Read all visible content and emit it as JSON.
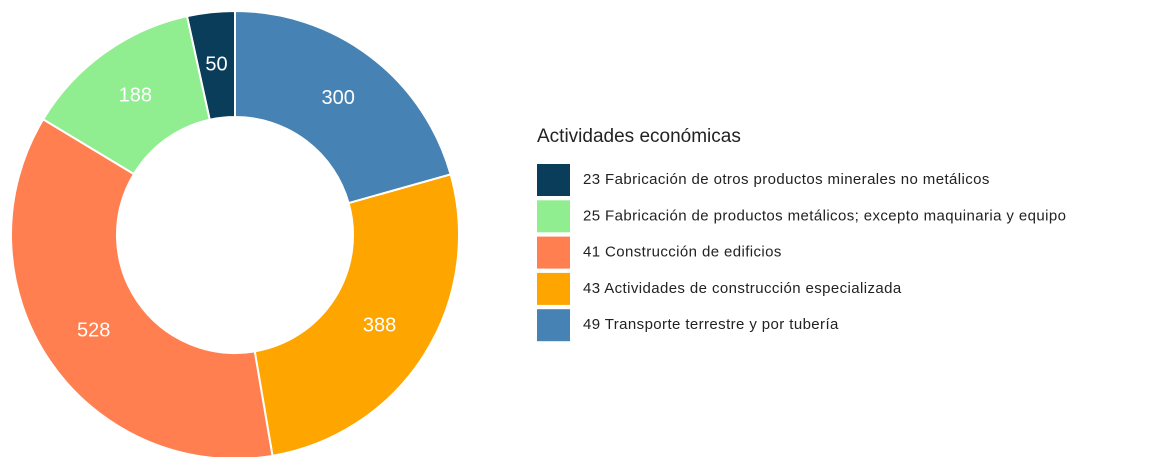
{
  "chart_data": {
    "type": "donut",
    "legend_title": "Actividades económicas",
    "categories": [
      "23 Fabricación de otros productos minerales no metálicos",
      "25 Fabricación de productos metálicos; excepto maquinaria y equipo",
      "41 Construcción de edificios",
      "43 Actividades de construcción especializada",
      "49 Transporte terrestre y por tubería"
    ],
    "values": [
      50,
      188,
      528,
      388,
      300
    ],
    "colors": [
      "#0a3d5a",
      "#90ee90",
      "#ff7f50",
      "#ffa500",
      "#4682b4"
    ],
    "legend": "right"
  }
}
